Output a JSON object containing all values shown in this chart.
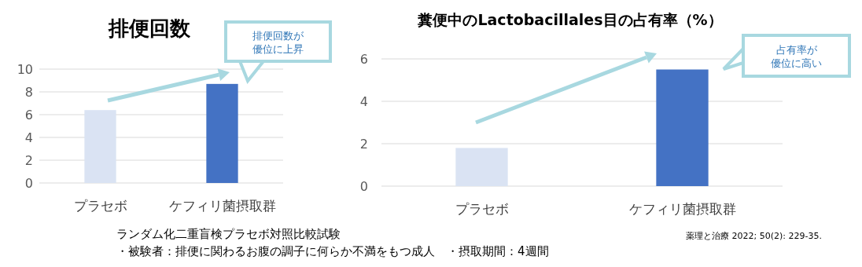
{
  "chart_data": [
    {
      "type": "bar",
      "title": "排便回数",
      "categories": [
        "プラセボ",
        "ケフィリ菌摂取群"
      ],
      "values": [
        6.4,
        8.7
      ],
      "colors": [
        "#dae3f3",
        "#4472c4"
      ],
      "ylim": [
        0,
        10
      ],
      "yticks": [
        0,
        2,
        4,
        6,
        8,
        10
      ],
      "grid": "y",
      "annotations": [
        "排便回数が",
        "優位に上昇",
        "ランダム化二重盲検プラセボ対照比較試験",
        "・被験者：排便に関わるお腹の調子に何らか不満をもつ成人　・摂取期間：4週間"
      ]
    },
    {
      "type": "bar",
      "title": "糞便中のLactobacillales目の占有率（%）",
      "categories": [
        "プラセボ",
        "ケフィリ菌摂取群"
      ],
      "values": [
        1.8,
        5.5
      ],
      "colors": [
        "#dae3f3",
        "#4472c4"
      ],
      "ylim": [
        0,
        6
      ],
      "yticks": [
        0,
        2,
        4,
        6
      ],
      "grid": "y",
      "annotations": [
        "占有率が",
        "優位に高い",
        "薬理と治療 2022; 50(2): 229-35."
      ]
    }
  ]
}
